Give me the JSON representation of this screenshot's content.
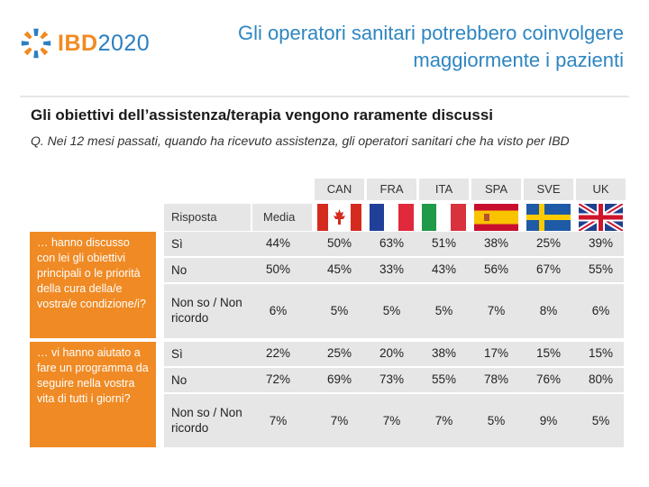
{
  "brand": {
    "name": "IBD",
    "year": "2020"
  },
  "header": {
    "title_line1": "Gli operatori sanitari potrebbero coinvolgere",
    "title_line2": "maggiormente i pazienti"
  },
  "subtitle": "Gli obiettivi dell’assistenza/terapia vengono raramente discussi",
  "question": "Q. Nei 12 mesi passati, quando ha ricevuto assistenza, gli operatori sanitari che ha visto per IBD",
  "table": {
    "col_risposta": "Risposta",
    "col_media": "Media",
    "countries": [
      "CAN",
      "FRA",
      "ITA",
      "SPA",
      "SVE",
      "UK"
    ],
    "groups": [
      {
        "label": "… hanno discusso con lei gli obiettivi principali o le priorità della cura della/e vostra/e condizione/i?",
        "rows": [
          {
            "risposta": "Sì",
            "values": [
              "44%",
              "50%",
              "63%",
              "51%",
              "38%",
              "25%",
              "39%"
            ]
          },
          {
            "risposta": "No",
            "values": [
              "50%",
              "45%",
              "33%",
              "43%",
              "56%",
              "67%",
              "55%"
            ]
          },
          {
            "risposta": "Non so / Non ricordo",
            "values": [
              "6%",
              "5%",
              "5%",
              "5%",
              "7%",
              "8%",
              "6%"
            ]
          }
        ]
      },
      {
        "label": "… vi hanno aiutato a fare un programma da seguire nella vostra vita di tutti i giorni?",
        "rows": [
          {
            "risposta": "Sì",
            "values": [
              "22%",
              "25%",
              "20%",
              "38%",
              "17%",
              "15%",
              "15%"
            ]
          },
          {
            "risposta": "No",
            "values": [
              "72%",
              "69%",
              "73%",
              "55%",
              "78%",
              "76%",
              "80%"
            ]
          },
          {
            "risposta": "Non so / Non ricordo",
            "values": [
              "7%",
              "7%",
              "7%",
              "7%",
              "5%",
              "9%",
              "5%"
            ]
          }
        ]
      }
    ]
  },
  "colors": {
    "accent_orange": "#f08a24",
    "title_blue": "#2e86c1",
    "row_grey": "#e6e6e6"
  }
}
